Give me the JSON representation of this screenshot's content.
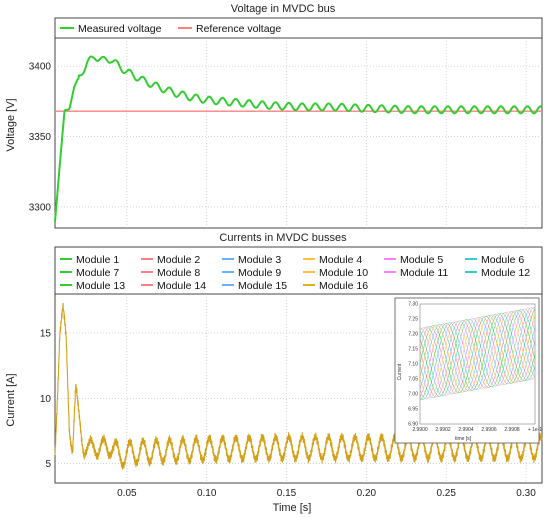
{
  "chart_data": [
    {
      "type": "line",
      "title": "Voltage in MVDC bus",
      "xlabel": "",
      "ylabel": "Voltage [V]",
      "xlim": [
        0.005,
        0.31
      ],
      "ylim": [
        3285,
        3420
      ],
      "yticks": [
        "3300",
        "3350",
        "3400"
      ],
      "ytick_values": [
        3300,
        3350,
        3400
      ],
      "xtick_values": [
        0.05,
        0.1,
        0.15,
        0.2,
        0.25,
        0.3
      ],
      "grid": true,
      "legend_position": "top",
      "series": [
        {
          "name": "Measured voltage",
          "color": "#33cc33",
          "x": [
            0.005,
            0.008,
            0.011,
            0.014,
            0.017,
            0.02,
            0.025,
            0.03,
            0.035,
            0.04,
            0.045,
            0.05,
            0.06,
            0.07,
            0.08,
            0.09,
            0.1,
            0.12,
            0.14,
            0.16,
            0.18,
            0.2,
            0.23,
            0.26,
            0.29,
            0.31
          ],
          "y": [
            3290,
            3330,
            3368,
            3370,
            3385,
            3392,
            3402,
            3407,
            3404,
            3405,
            3400,
            3396,
            3390,
            3385,
            3381,
            3378,
            3376,
            3374,
            3372,
            3371,
            3371,
            3370,
            3369,
            3369,
            3369,
            3369
          ],
          "oscillation_amplitude": 2.5,
          "oscillation_period": 0.0083
        },
        {
          "name": "Reference voltage",
          "color": "#ff8080",
          "x": [
            0.005,
            0.31
          ],
          "y": [
            3368,
            3368
          ]
        }
      ]
    },
    {
      "type": "line",
      "title": "Currents in MVDC busses",
      "xlabel": "Time [s]",
      "ylabel": "Current [A]",
      "xlim": [
        0.005,
        0.31
      ],
      "ylim": [
        3.5,
        18
      ],
      "yticks": [
        "5",
        "10",
        "15"
      ],
      "ytick_values": [
        5,
        10,
        15
      ],
      "xticks": [
        "0.05",
        "0.10",
        "0.15",
        "0.20",
        "0.25",
        "0.30"
      ],
      "xtick_values": [
        0.05,
        0.1,
        0.15,
        0.2,
        0.25,
        0.3
      ],
      "grid": true,
      "legend_position": "top",
      "series": [
        {
          "name": "Module 1",
          "color": "#33cc33"
        },
        {
          "name": "Module 2",
          "color": "#ff8080"
        },
        {
          "name": "Module 3",
          "color": "#66b3ff"
        },
        {
          "name": "Module 4",
          "color": "#ffbf40"
        },
        {
          "name": "Module 5",
          "color": "#ff80ff"
        },
        {
          "name": "Module 6",
          "color": "#33cccc"
        },
        {
          "name": "Module 7",
          "color": "#33cc33"
        },
        {
          "name": "Module 8",
          "color": "#ff8080"
        },
        {
          "name": "Module 9",
          "color": "#66b3ff"
        },
        {
          "name": "Module 10",
          "color": "#ffbf40"
        },
        {
          "name": "Module 11",
          "color": "#ff80ff"
        },
        {
          "name": "Module 12",
          "color": "#33cccc"
        },
        {
          "name": "Module 13",
          "color": "#33cc33"
        },
        {
          "name": "Module 14",
          "color": "#ff8080"
        },
        {
          "name": "Module 15",
          "color": "#66b3ff"
        },
        {
          "name": "Module 16",
          "color": "#e0b020"
        }
      ],
      "envelope": {
        "color": "#d4a017",
        "x": [
          0.005,
          0.008,
          0.01,
          0.012,
          0.014,
          0.016,
          0.018,
          0.02,
          0.023,
          0.026,
          0.03,
          0.035,
          0.04,
          0.045,
          0.05,
          0.06,
          0.08,
          0.1,
          0.15,
          0.2,
          0.25,
          0.31
        ],
        "y": [
          6.0,
          15.0,
          16.5,
          14.5,
          8.0,
          6.0,
          10.5,
          8.5,
          6.5,
          5.8,
          6.5,
          6.0,
          6.5,
          5.5,
          5.8,
          5.9,
          6.0,
          6.1,
          6.2,
          6.2,
          6.2,
          6.2
        ],
        "oscillation_amplitude": 0.85,
        "oscillation_period": 0.0083
      },
      "inset": {
        "type": "line",
        "xlabel": "time [s]",
        "ylabel": "Current",
        "xlim": [
          2.99,
          2.991
        ],
        "ylim": [
          6.9,
          7.3
        ],
        "xticks": [
          "2.9900",
          "2.9902",
          "2.9904",
          "2.9906",
          "2.9908",
          "+ 1e-1"
        ],
        "yticks": [
          "6.90",
          "6.95",
          "7.00",
          "7.05",
          "7.10",
          "7.15",
          "7.20",
          "7.25",
          "7.30"
        ]
      }
    }
  ]
}
